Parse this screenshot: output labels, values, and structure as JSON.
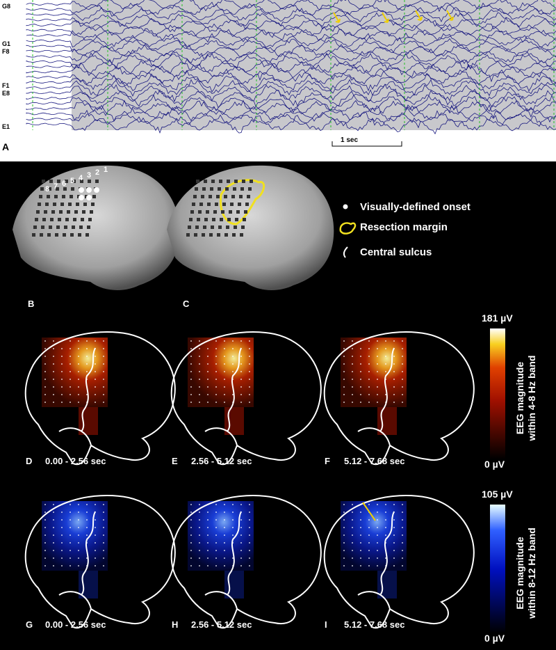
{
  "eeg": {
    "channels": [
      "G8",
      "G1",
      "F8",
      "F1",
      "E8",
      "E1"
    ],
    "panel_label": "A",
    "scale_bar": "1 sec"
  },
  "brains": {
    "labels": [
      "B",
      "C"
    ],
    "electrode_numbers": [
      "8",
      "7",
      "6",
      "5",
      "4",
      "3",
      "2",
      "1"
    ]
  },
  "legend": [
    "Visually-defined onset",
    "Resection margin",
    "Central sulcus"
  ],
  "theta_row": {
    "panels": [
      {
        "label": "D",
        "time": "0.00 - 2.56 sec"
      },
      {
        "label": "E",
        "time": "2.56 - 5.12 sec"
      },
      {
        "label": "F",
        "time": "5.12 - 7.68 sec"
      }
    ],
    "colorbar": {
      "max": "181 µV",
      "min": "0 µV",
      "title_lines": [
        "EEG magnitude",
        "within 4-8 Hz band"
      ]
    }
  },
  "alpha_row": {
    "panels": [
      {
        "label": "G",
        "time": "0.00 - 2.56 sec"
      },
      {
        "label": "H",
        "time": "2.56 - 5.12 sec"
      },
      {
        "label": "I",
        "time": "5.12 - 7.68 sec"
      }
    ],
    "colorbar": {
      "max": "105 µV",
      "min": "0 µV",
      "title_lines": [
        "EEG magnitude",
        "within 8-12 Hz band"
      ]
    }
  }
}
